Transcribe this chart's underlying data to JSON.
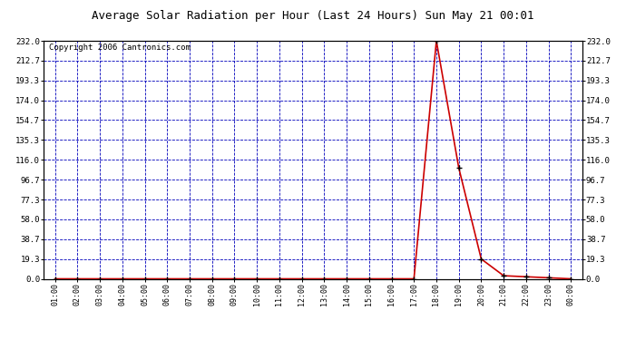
{
  "title": "Average Solar Radiation per Hour (Last 24 Hours) Sun May 21 00:01",
  "copyright": "Copyright 2006 Cantronics.com",
  "x_labels": [
    "01:00",
    "02:00",
    "03:00",
    "04:00",
    "05:00",
    "06:00",
    "07:00",
    "08:00",
    "09:00",
    "10:00",
    "11:00",
    "12:00",
    "13:00",
    "14:00",
    "15:00",
    "16:00",
    "17:00",
    "18:00",
    "19:00",
    "20:00",
    "21:00",
    "22:00",
    "23:00",
    "00:00"
  ],
  "y_values": [
    0.0,
    0.0,
    0.0,
    0.0,
    0.0,
    0.0,
    0.0,
    0.0,
    0.0,
    0.0,
    0.0,
    0.0,
    0.0,
    0.0,
    0.0,
    0.0,
    0.0,
    232.0,
    108.0,
    19.3,
    3.0,
    2.0,
    1.0,
    0.0
  ],
  "y_ticks": [
    0.0,
    19.3,
    38.7,
    58.0,
    77.3,
    96.7,
    116.0,
    135.3,
    154.7,
    174.0,
    193.3,
    212.7,
    232.0
  ],
  "y_max": 232.0,
  "line_color": "#cc0000",
  "marker_color": "#000000",
  "bg_color": "#ffffff",
  "plot_bg_color": "#ffffff",
  "grid_color": "#0000bb",
  "title_fontsize": 9,
  "copyright_fontsize": 6.5
}
